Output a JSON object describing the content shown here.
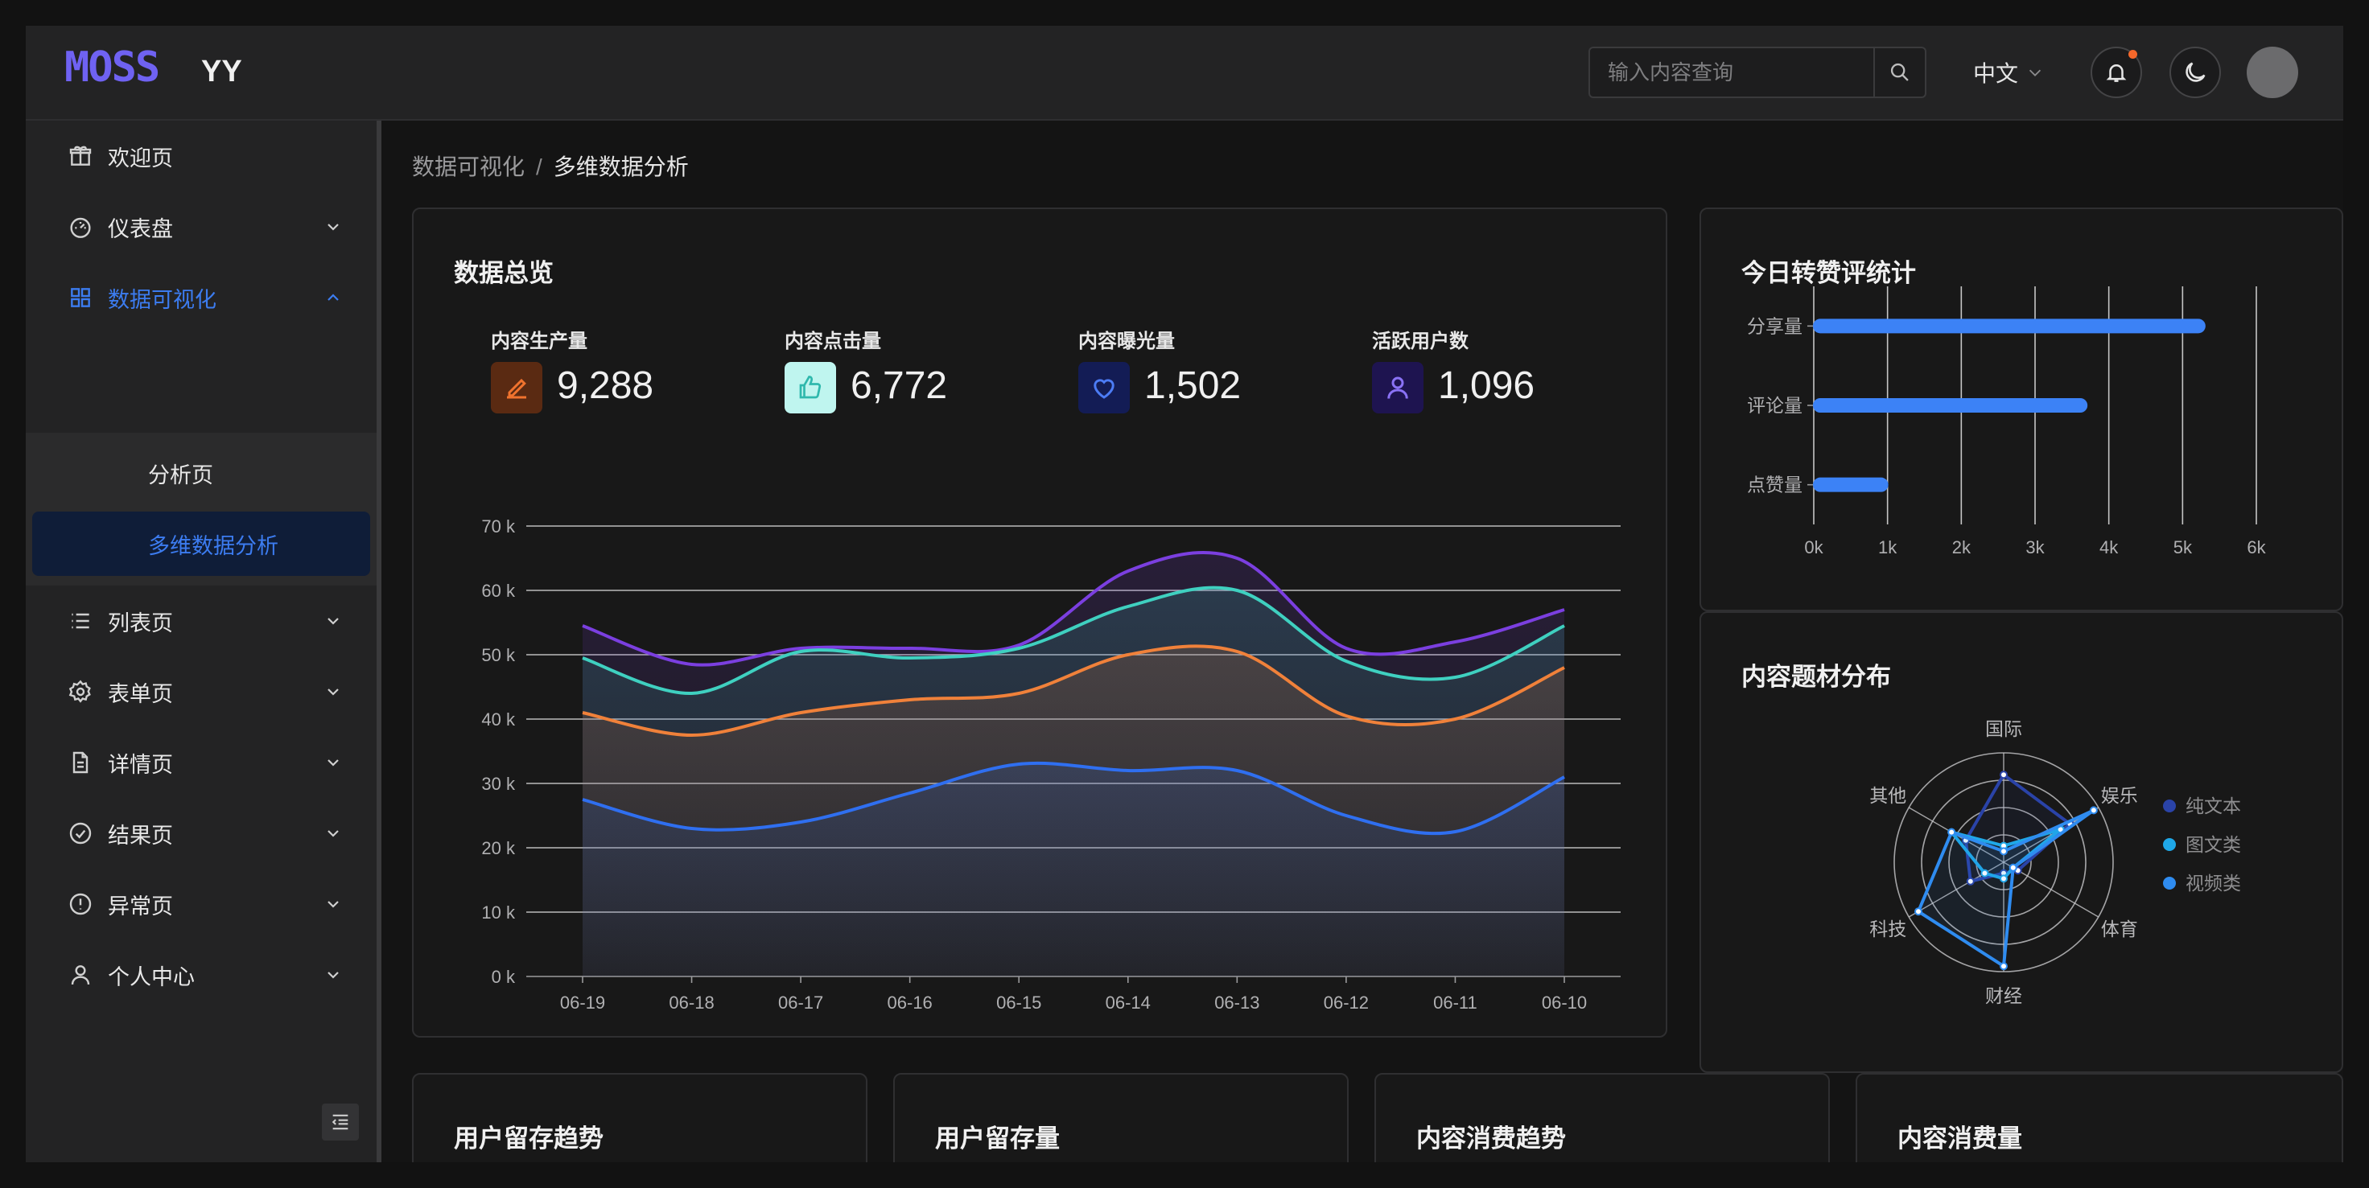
{
  "header": {
    "logo": "MOSS",
    "app_name": "YY",
    "search_placeholder": "输入内容查询",
    "language": "中文"
  },
  "sidebar": {
    "items": [
      {
        "label": "欢迎页",
        "icon": "gift-icon",
        "expandable": false
      },
      {
        "label": "仪表盘",
        "icon": "dashboard-icon",
        "expandable": true
      },
      {
        "label": "数据可视化",
        "icon": "grid-icon",
        "expandable": true,
        "expanded": true,
        "active": true,
        "children": [
          {
            "label": "分析页"
          },
          {
            "label": "多维数据分析",
            "active": true
          }
        ]
      },
      {
        "label": "列表页",
        "icon": "list-icon",
        "expandable": true
      },
      {
        "label": "表单页",
        "icon": "gear-icon",
        "expandable": true
      },
      {
        "label": "详情页",
        "icon": "file-icon",
        "expandable": true
      },
      {
        "label": "结果页",
        "icon": "check-circle-icon",
        "expandable": true
      },
      {
        "label": "异常页",
        "icon": "exclamation-circle-icon",
        "expandable": true
      },
      {
        "label": "个人中心",
        "icon": "user-icon",
        "expandable": true
      }
    ]
  },
  "breadcrumb": {
    "parent": "数据可视化",
    "separator": "/",
    "current": "多维数据分析"
  },
  "overview": {
    "title": "数据总览",
    "stats": [
      {
        "label": "内容生产量",
        "value": "9,288",
        "icon": "edit-icon",
        "color": "#e8632a",
        "bg": "#5a2a12"
      },
      {
        "label": "内容点击量",
        "value": "6,772",
        "icon": "thumb-up-icon",
        "color": "#2fc4b8",
        "bg": "#bff5ef"
      },
      {
        "label": "内容曝光量",
        "value": "1,502",
        "icon": "heart-icon",
        "color": "#3c6cf0",
        "bg": "#131c55"
      },
      {
        "label": "活跃用户数",
        "value": "1,096",
        "icon": "user-icon",
        "color": "#7a62f0",
        "bg": "#1e1450"
      }
    ],
    "chart_data": {
      "type": "area",
      "categories": [
        "06-19",
        "06-18",
        "06-17",
        "06-16",
        "06-15",
        "06-14",
        "06-13",
        "06-12",
        "06-11",
        "06-10"
      ],
      "ylim": [
        0,
        70000
      ],
      "yticks": [
        "0 k",
        "10 k",
        "20 k",
        "30 k",
        "40 k",
        "50 k",
        "60 k",
        "70 k"
      ],
      "grid": true,
      "series": [
        {
          "values": [
            54500,
            48500,
            51000,
            51000,
            51500,
            63000,
            65000,
            51000,
            52000,
            57000
          ],
          "color": "#7b3fe0"
        },
        {
          "values": [
            49500,
            44000,
            50500,
            49500,
            51000,
            57500,
            60000,
            49000,
            46500,
            54500
          ],
          "color": "#3fd0c0"
        },
        {
          "values": [
            41000,
            37500,
            41000,
            43000,
            44000,
            50000,
            50500,
            40500,
            40000,
            48000
          ],
          "color": "#f0813a"
        },
        {
          "values": [
            27500,
            23000,
            24000,
            28500,
            33000,
            32000,
            32000,
            25000,
            22500,
            31000
          ],
          "color": "#2f6ff0"
        }
      ]
    }
  },
  "interactions": {
    "title": "今日转赞评统计",
    "chart_data": {
      "type": "bar",
      "orientation": "horizontal",
      "categories": [
        "分享量",
        "评论量",
        "点赞量"
      ],
      "values": [
        5300,
        3700,
        1000
      ],
      "xlim": [
        0,
        6000
      ],
      "xticks": [
        "0k",
        "1k",
        "2k",
        "3k",
        "4k",
        "5k",
        "6k"
      ],
      "color": "#3c82f6"
    }
  },
  "topics": {
    "title": "内容题材分布",
    "chart_data": {
      "type": "radar",
      "indicators": [
        "国际",
        "娱乐",
        "体育",
        "财经",
        "科技",
        "其他"
      ],
      "max": 100,
      "series": [
        {
          "name": "纯文本",
          "values": [
            80,
            70,
            15,
            10,
            35,
            40
          ],
          "color": "#2a43a8"
        },
        {
          "name": "图文类",
          "values": [
            15,
            60,
            10,
            15,
            20,
            55
          ],
          "color": "#1fa8e8"
        },
        {
          "name": "视频类",
          "values": [
            10,
            95,
            10,
            95,
            90,
            55
          ],
          "color": "#2f8cf0"
        }
      ]
    }
  },
  "bottom_cards": [
    "用户留存趋势",
    "用户留存量",
    "内容消费趋势",
    "内容消费量"
  ]
}
